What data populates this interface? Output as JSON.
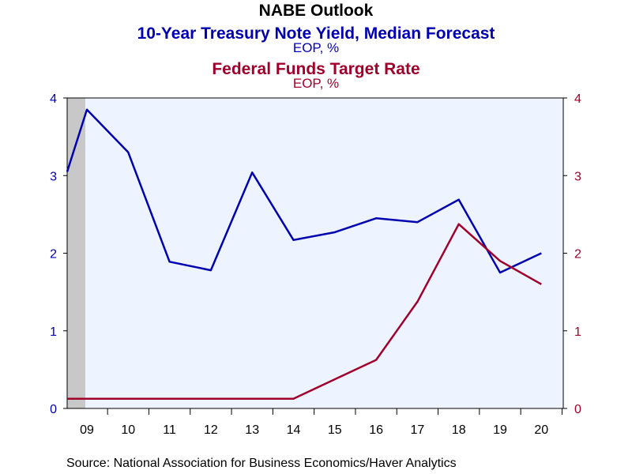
{
  "chart_data": {
    "type": "line",
    "title": "NABE Outlook",
    "x": [
      "09",
      "10",
      "11",
      "12",
      "13",
      "14",
      "15",
      "16",
      "17",
      "18",
      "19",
      "20"
    ],
    "series": [
      {
        "name": "10-Year Treasury Note Yield, Median Forecast",
        "unit": "EOP, %",
        "axis": "left",
        "color": "#0000b0",
        "start_value": 3.05,
        "values": [
          3.85,
          3.3,
          1.89,
          1.78,
          3.04,
          2.17,
          2.27,
          2.45,
          2.4,
          2.69,
          1.75,
          2.0
        ]
      },
      {
        "name": "Federal Funds Target Rate",
        "unit": "EOP, %",
        "axis": "right",
        "color": "#a0002a",
        "start_value": 0.125,
        "values": [
          0.125,
          0.125,
          0.125,
          0.125,
          0.125,
          0.125,
          0.375,
          0.625,
          1.375,
          2.375,
          1.9,
          1.6
        ]
      }
    ],
    "ylim": [
      0,
      4
    ],
    "yticks_left": [
      "0",
      "1",
      "2",
      "3",
      "4"
    ],
    "yticks_right": [
      "0",
      "1",
      "2",
      "3",
      "4"
    ],
    "recession_shading": true,
    "plot_background": "#eef4ff",
    "source": "Source:  National Association for Business Economics/Haver Analytics"
  }
}
